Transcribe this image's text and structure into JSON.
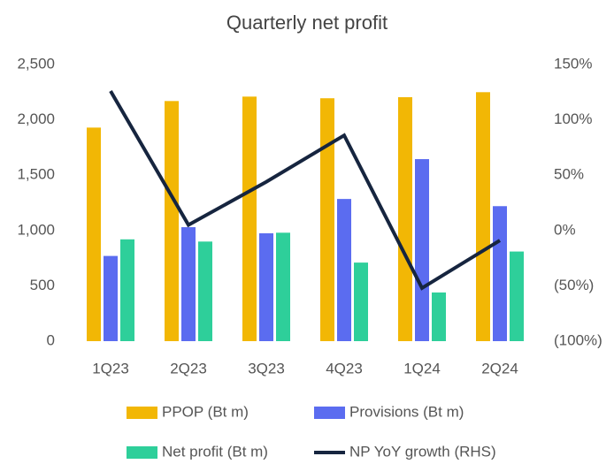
{
  "chart_data": {
    "type": "bar",
    "title": "Quarterly net profit",
    "categories": [
      "1Q23",
      "2Q23",
      "3Q23",
      "4Q23",
      "1Q24",
      "2Q24"
    ],
    "series": [
      {
        "name": "PPOP (Bt m)",
        "color": "#f2b705",
        "values": [
          1930,
          2170,
          2210,
          2195,
          2205,
          2250
        ]
      },
      {
        "name": "Provisions (Bt m)",
        "color": "#5b6cf0",
        "values": [
          770,
          1030,
          975,
          1285,
          1645,
          1220
        ]
      },
      {
        "name": "Net profit (Bt m)",
        "color": "#2ecf9a",
        "values": [
          920,
          900,
          980,
          710,
          440,
          810
        ]
      },
      {
        "name": "NP YoY growth (RHS)",
        "color": "#16253f",
        "type": "line",
        "axis": "y2",
        "values": [
          126,
          5,
          44,
          86,
          -52,
          -9
        ]
      }
    ],
    "ylim": [
      0,
      2500
    ],
    "yticks": [
      0,
      500,
      {
        "value": 1000,
        "label": "1,000"
      },
      {
        "value": 1500,
        "label": "1,500"
      },
      {
        "value": 2000,
        "label": "2,000"
      },
      {
        "value": 2500,
        "label": "2,500"
      }
    ],
    "y2lim": [
      -100,
      150
    ],
    "y2ticks": [
      {
        "value": -100,
        "label": "(100%)"
      },
      {
        "value": -50,
        "label": "(50%)"
      },
      {
        "value": 0,
        "label": "0%"
      },
      {
        "value": 50,
        "label": "50%"
      },
      {
        "value": 100,
        "label": "100%"
      },
      {
        "value": 150,
        "label": "150%"
      }
    ]
  }
}
